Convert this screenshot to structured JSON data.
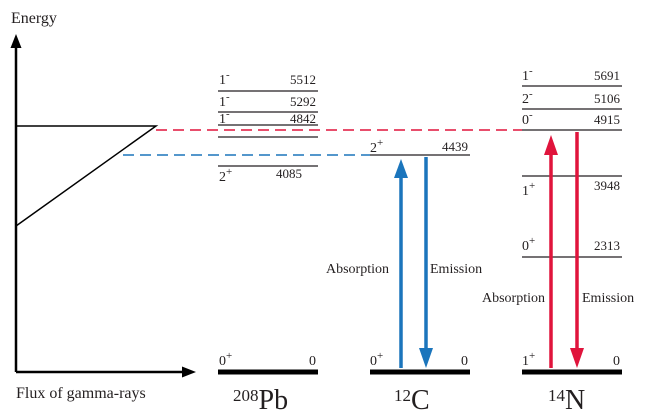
{
  "axes": {
    "y_label": "Energy",
    "x_label": "Flux of gamma-rays"
  },
  "nuclei": [
    {
      "id": "pb208",
      "mass": "208",
      "symbol": "Pb",
      "ground": {
        "spin": "0",
        "parity": "+",
        "energy": "0"
      },
      "levels": [
        {
          "spin": "1",
          "parity": "-",
          "energy": "5512"
        },
        {
          "spin": "1",
          "parity": "-",
          "energy": "5292"
        },
        {
          "spin": "1",
          "parity": "-",
          "energy": "4842"
        },
        {
          "spin": "",
          "parity": "",
          "energy": ""
        },
        {
          "spin": "2",
          "parity": "+",
          "energy": "4085"
        }
      ]
    },
    {
      "id": "c12",
      "mass": "12",
      "symbol": "C",
      "ground": {
        "spin": "0",
        "parity": "+",
        "energy": "0"
      },
      "levels": [
        {
          "spin": "2",
          "parity": "+",
          "energy": "4439"
        }
      ],
      "transitions": {
        "up_label": "Absorption",
        "down_label": "Emission",
        "color": "#1b75bc"
      }
    },
    {
      "id": "n14",
      "mass": "14",
      "symbol": "N",
      "ground": {
        "spin": "1",
        "parity": "+",
        "energy": "0"
      },
      "levels": [
        {
          "spin": "1",
          "parity": "-",
          "energy": "5691"
        },
        {
          "spin": "2",
          "parity": "-",
          "energy": "5106"
        },
        {
          "spin": "0",
          "parity": "-",
          "energy": "4915"
        },
        {
          "spin": "1",
          "parity": "+",
          "energy": "3948"
        },
        {
          "spin": "0",
          "parity": "+",
          "energy": "2313"
        }
      ],
      "transitions": {
        "up_label": "Absorption",
        "down_label": "Emission",
        "color": "#e0143c"
      }
    }
  ],
  "colors": {
    "ink": "#231f20",
    "absorption_c": "#1b75bc",
    "absorption_n": "#e0143c",
    "dashed_red": "#e0143c",
    "dashed_blue": "#1b75bc"
  }
}
